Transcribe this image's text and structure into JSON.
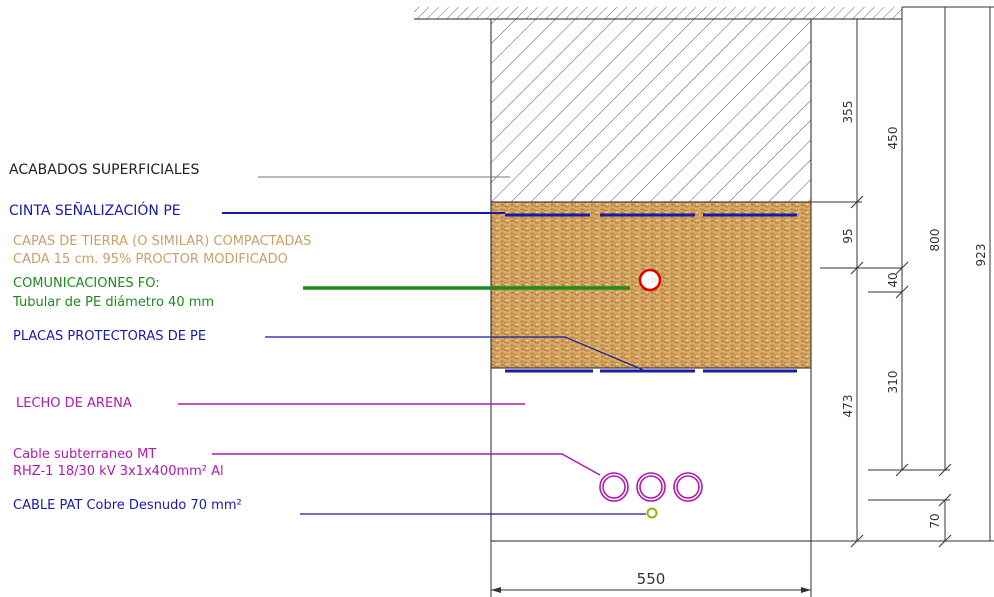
{
  "labels": {
    "acabados": "ACABADOS SUPERFICIALES",
    "cinta": "CINTA SEÑALIZACIÓN PE",
    "capas_1": "CAPAS DE TIERRA (O SIMILAR) COMPACTADAS",
    "capas_2": "CADA 15 cm. 95% PROCTOR MODIFICADO",
    "comunicaciones_1": "COMUNICACIONES FO:",
    "comunicaciones_2": "Tubular de PE diámetro 40 mm",
    "placas": "PLACAS PROTECTORAS DE PE",
    "lecho": "LECHO DE ARENA",
    "cable_mt_1": "Cable subterraneo MT",
    "cable_mt_2": "RHZ-1 18/30 kV 3x1x400mm² Al",
    "cable_pat": "CABLE PAT Cobre Desnudo 70 mm²"
  },
  "dimensions": {
    "d355": "355",
    "d450": "450",
    "d800": "800",
    "d923": "923",
    "d95": "95",
    "d40": "40",
    "d310": "310",
    "d473": "473",
    "d70": "70",
    "width": "550"
  },
  "colors": {
    "black": "#222222",
    "blue": "#1a1aa8",
    "tan": "#c9a06a",
    "green": "#1e8a1e",
    "magenta": "#b01ab0",
    "red": "#e00000",
    "soil": "#c79650"
  }
}
